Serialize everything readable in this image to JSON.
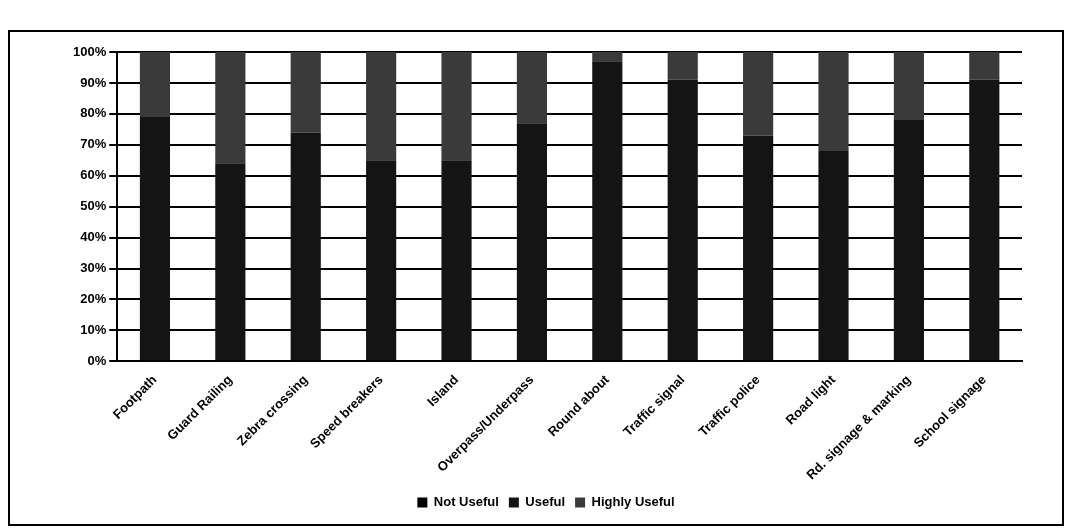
{
  "chart_data": {
    "type": "bar",
    "stacked": true,
    "categories": [
      "Footpath",
      "Guard Railing",
      "Zebra crossing",
      "Speed breakers",
      "Island",
      "Overpass/Underpass",
      "Round about",
      "Traffic signal",
      "Traffic police",
      "Road light",
      "Rd. signage & marking",
      "School signage"
    ],
    "series": [
      {
        "name": "Not Useful",
        "color": "#000000",
        "values": [
          0,
          0,
          0,
          0,
          0,
          0,
          0,
          0,
          0,
          0,
          0,
          0
        ]
      },
      {
        "name": "Useful",
        "color": "#141414",
        "values": [
          79,
          64,
          74,
          65,
          65,
          77,
          97,
          91,
          73,
          68,
          78,
          91
        ]
      },
      {
        "name": "Highly Useful",
        "color": "#3a3a3a",
        "values": [
          21,
          36,
          26,
          35,
          35,
          23,
          3,
          9,
          27,
          32,
          22,
          9
        ]
      }
    ],
    "ylim": [
      0,
      100
    ],
    "yticks": [
      {
        "value": 0,
        "label": "0%"
      },
      {
        "value": 10,
        "label": "10%"
      },
      {
        "value": 20,
        "label": "20%"
      },
      {
        "value": 30,
        "label": "30%"
      },
      {
        "value": 40,
        "label": "40%"
      },
      {
        "value": 50,
        "label": "50%"
      },
      {
        "value": 60,
        "label": "60%"
      },
      {
        "value": 70,
        "label": "70%"
      },
      {
        "value": 80,
        "label": "80%"
      },
      {
        "value": 90,
        "label": "90%"
      },
      {
        "value": 100,
        "label": "100%"
      }
    ],
    "grid": "y",
    "legend": "bottom"
  }
}
